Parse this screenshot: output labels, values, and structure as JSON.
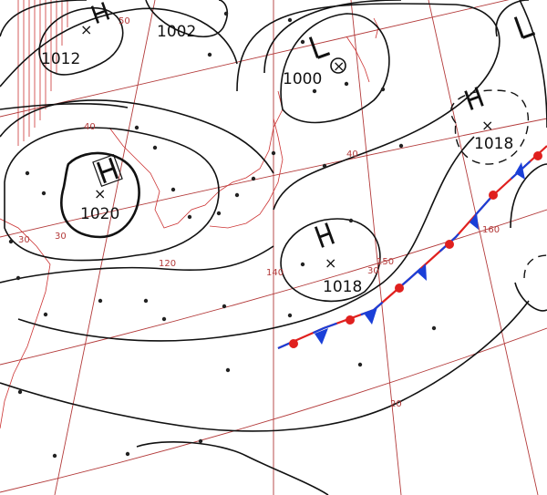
{
  "map": {
    "isobar_labels": [
      {
        "id": "isobar-1012",
        "text": "1012"
      },
      {
        "id": "isobar-1002",
        "text": "1002"
      },
      {
        "id": "isobar-1000",
        "text": "1000"
      },
      {
        "id": "isobar-1020",
        "text": "1020"
      },
      {
        "id": "isobar-1018-east",
        "text": "1018"
      },
      {
        "id": "isobar-1018-south",
        "text": "1018"
      }
    ],
    "pressure_centers": [
      {
        "id": "high-west",
        "symbol": "H"
      },
      {
        "id": "high-northwest",
        "symbol": "H"
      },
      {
        "id": "low-north",
        "symbol": "L"
      },
      {
        "id": "low-northeast",
        "symbol": "L"
      },
      {
        "id": "high-east",
        "symbol": "H"
      },
      {
        "id": "high-south",
        "symbol": "H"
      }
    ],
    "grid_labels": {
      "lat_40": "40",
      "lat_30": "30",
      "lat_30_right": "30",
      "lat_20": "20",
      "lat_50": "50",
      "lat_40_left": "40",
      "lat_30_left": "30",
      "lon_140": "140",
      "lon_150": "150",
      "lon_160": "160",
      "lon_120": "120"
    },
    "front": {
      "type": "stationary",
      "warm_color": "#e0201e",
      "cold_color": "#1a3fd8"
    },
    "colors": {
      "isobar": "#111111",
      "grid": "#b33a3a",
      "coast": "#cc3333"
    }
  }
}
